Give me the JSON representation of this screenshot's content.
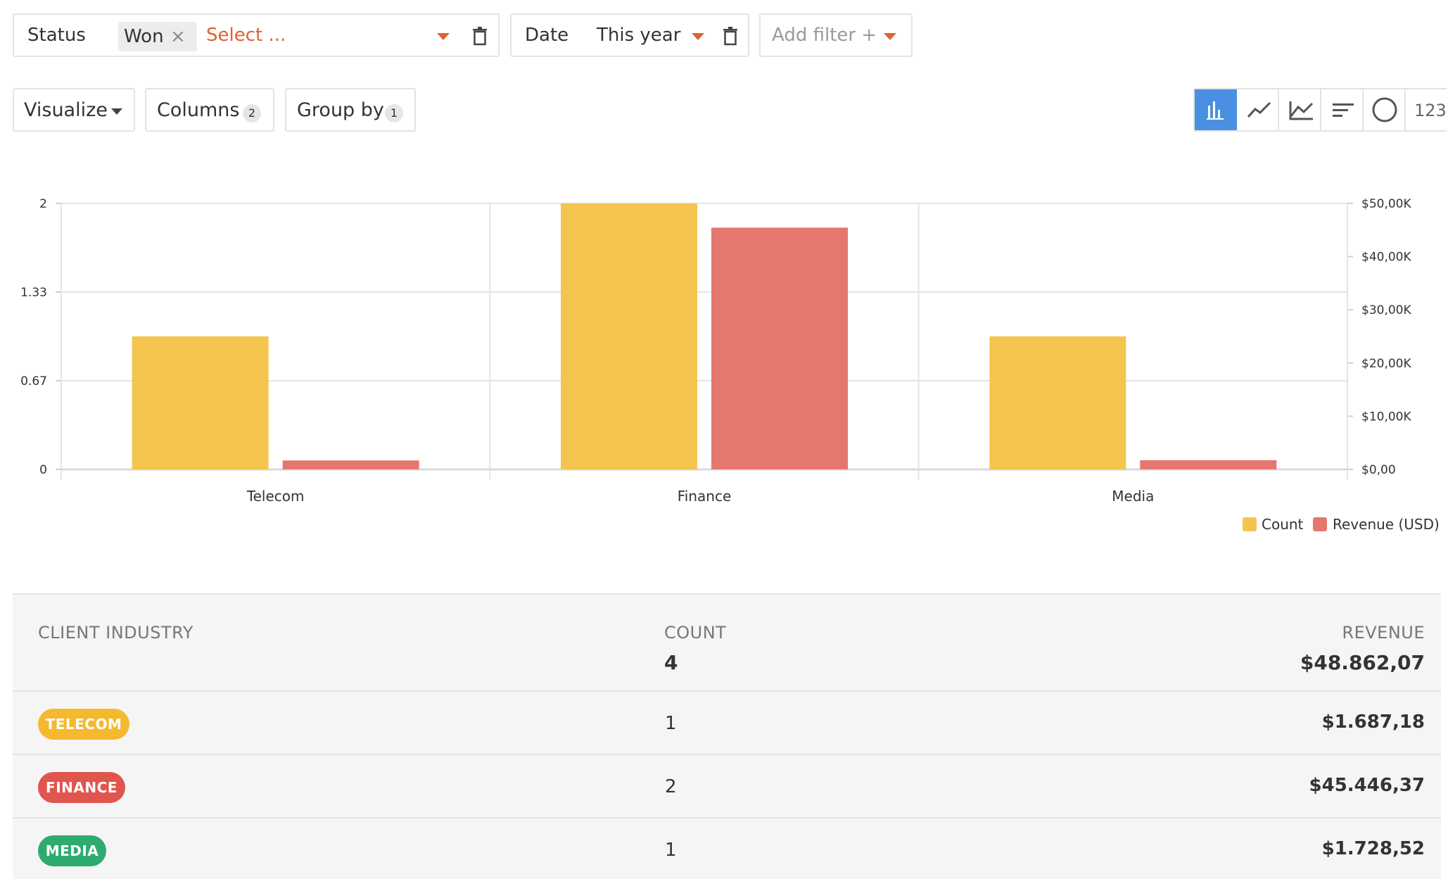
{
  "filters": {
    "status": {
      "label": "Status",
      "chip": "Won",
      "placeholder": "Select ..."
    },
    "date": {
      "label": "Date",
      "value": "This year"
    },
    "add_filter": {
      "label": "Add filter +"
    }
  },
  "controls": {
    "visualize": "Visualize",
    "columns": {
      "label": "Columns",
      "count": "2"
    },
    "group_by": {
      "label": "Group by",
      "count": "1"
    },
    "viz_types": [
      "bar-chart-icon",
      "line-chart-icon",
      "area-chart-icon",
      "horizontal-bar-icon",
      "pie-chart-icon",
      "number-icon"
    ],
    "viz_number_label": "123",
    "active_viz": "bar-chart-icon",
    "accent": "#4a90e2"
  },
  "chart_data": {
    "type": "bar",
    "categories": [
      "Telecom",
      "Finance",
      "Media"
    ],
    "series": [
      {
        "name": "Count",
        "axis": "left",
        "color": "#f4c54e",
        "values": [
          1,
          2,
          1
        ]
      },
      {
        "name": "Revenue (USD)",
        "axis": "right",
        "color": "#e5776f",
        "values": [
          1687.18,
          45446.37,
          1728.52
        ]
      }
    ],
    "y_left": {
      "ticks": [
        "0",
        "0.67",
        "1.33",
        "2"
      ],
      "lim": [
        0,
        2
      ]
    },
    "y_right": {
      "ticks": [
        "$0,00",
        "$10,00K",
        "$20,00K",
        "$30,00K",
        "$40,00K",
        "$50,00K"
      ],
      "lim": [
        0,
        50000
      ]
    },
    "grid": true,
    "legend_position": "bottom-right"
  },
  "legend": {
    "count": "Count",
    "revenue": "Revenue (USD)"
  },
  "table": {
    "headers": {
      "industry": "CLIENT INDUSTRY",
      "count": "COUNT",
      "revenue": "REVENUE"
    },
    "totals": {
      "count": "4",
      "revenue": "$48.862,07"
    },
    "rows": [
      {
        "industry": "TELECOM",
        "color": "#f4b92f",
        "count": "1",
        "revenue": "$1.687,18"
      },
      {
        "industry": "FINANCE",
        "color": "#e0554d",
        "count": "2",
        "revenue": "$45.446,37"
      },
      {
        "industry": "MEDIA",
        "color": "#2eab6f",
        "count": "1",
        "revenue": "$1.728,52"
      }
    ]
  }
}
